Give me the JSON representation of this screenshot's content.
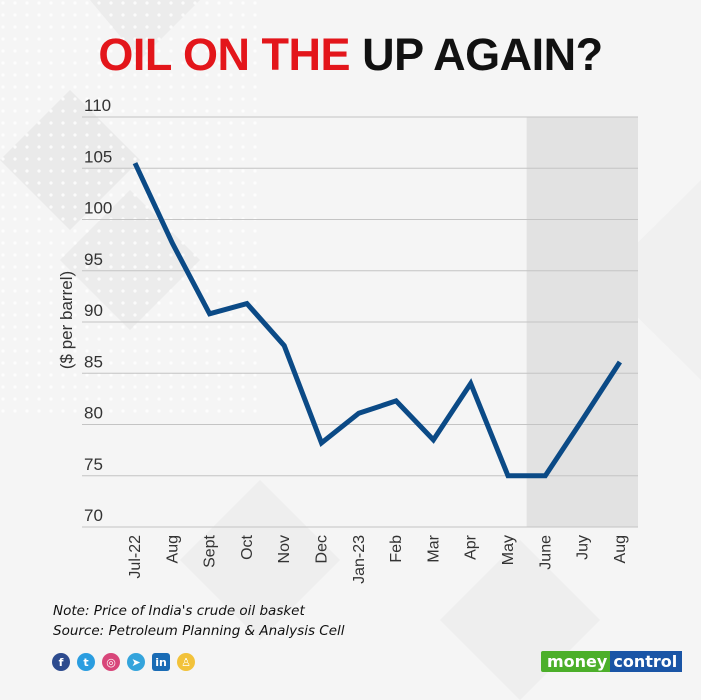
{
  "title": {
    "part_red": "OIL ON THE",
    "part_black": "UP AGAIN?",
    "red_color": "#e3161b",
    "black_color": "#111111"
  },
  "chart_data": {
    "type": "line",
    "title": "OIL ON THE UP AGAIN?",
    "xlabel": "",
    "ylabel": "($ per barrel)",
    "categories": [
      "Jul-22",
      "Aug",
      "Sept",
      "Oct",
      "Nov",
      "Dec",
      "Jan-23",
      "Feb",
      "Mar",
      "Apr",
      "May",
      "June",
      "Juy",
      "Aug"
    ],
    "series": [
      {
        "name": "Price of India's crude oil basket",
        "color": "#0b4a86",
        "values": [
          105.5,
          97.7,
          90.8,
          91.8,
          87.7,
          78.2,
          81.1,
          82.3,
          78.5,
          84.0,
          75.0,
          75.0,
          80.5,
          86.1
        ]
      }
    ],
    "ylim": [
      70,
      110
    ],
    "yticks": [
      110,
      105,
      100,
      95,
      90,
      85,
      80,
      75,
      70
    ],
    "grid": true,
    "legend": "none",
    "shaded_region": {
      "from": "June",
      "to": "Aug",
      "color": "#e2e2e2"
    }
  },
  "footer": {
    "note": "Note: Price of India's crude oil basket",
    "source": "Source: Petroleum Planning & Analysis Cell"
  },
  "social": [
    {
      "name": "facebook",
      "glyph": "f",
      "color": "#2d4b8e"
    },
    {
      "name": "twitter",
      "glyph": "t",
      "color": "#2a9de0"
    },
    {
      "name": "instagram",
      "glyph": "◎",
      "color": "#d8467a"
    },
    {
      "name": "telegram",
      "glyph": "➤",
      "color": "#34a4dc"
    },
    {
      "name": "linkedin",
      "glyph": "in",
      "color": "#1a6cb5"
    },
    {
      "name": "snapchat",
      "glyph": "♙",
      "color": "#f2c23a"
    }
  ],
  "logo": {
    "money": "money",
    "control": "control"
  }
}
